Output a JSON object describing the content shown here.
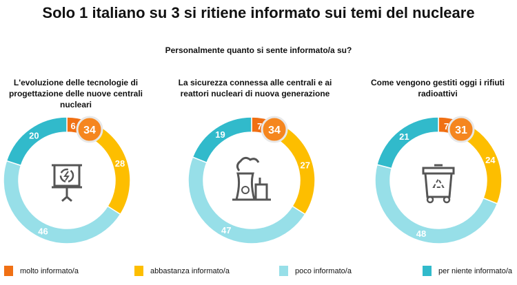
{
  "title": "Solo 1 italiano su 3 si ritiene informato sui temi del nucleare",
  "subtitle": "Personalmente quanto si sente informato/a su?",
  "colors": {
    "molto": "#F07014",
    "abbastanza": "#FDBE00",
    "poco": "#97DFE8",
    "per_niente": "#31BACB",
    "badge": "#F5861F"
  },
  "chart_data": {
    "type": "pie",
    "variant": "donut",
    "legend_position": "bottom",
    "series_names": [
      "molto informato/a",
      "abbastanza informato/a",
      "poco informato/a",
      "per niente informato/a"
    ],
    "charts": [
      {
        "title": "L'evoluzione delle tecnologie di progettazione delle nuove centrali nucleari",
        "values": [
          6,
          28,
          46,
          20
        ],
        "total_informed": 34,
        "icon": "presentation-board-icon"
      },
      {
        "title": "La sicurezza connessa alle centrali e ai reattori nucleari di nuova generazione",
        "values": [
          7,
          27,
          47,
          19
        ],
        "total_informed": 34,
        "icon": "nuclear-plant-icon"
      },
      {
        "title": "Come vengono gestiti oggi i rifiuti radioattivi",
        "values": [
          7,
          24,
          48,
          21
        ],
        "total_informed": 31,
        "icon": "recycling-bin-icon"
      }
    ]
  }
}
